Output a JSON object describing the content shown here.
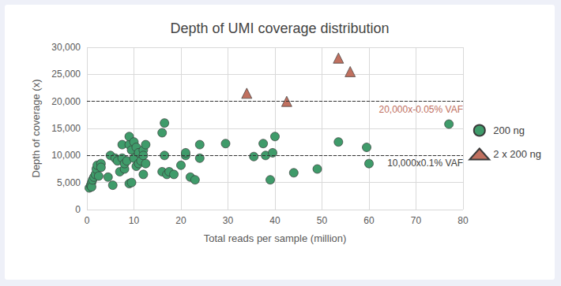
{
  "chart_data": {
    "type": "scatter",
    "title": "Depth of UMI coverage distribution",
    "x_label": "Total reads per sample (million)",
    "y_label": "Depth of coverage (x)",
    "xlim": [
      0,
      80
    ],
    "xticks": [
      0,
      10,
      20,
      30,
      40,
      50,
      60,
      70,
      80
    ],
    "ylim": [
      0,
      30000
    ],
    "yticks": [
      0,
      {
        "value": 5000,
        "label": "5,000"
      },
      {
        "value": 10000,
        "label": "10,000"
      },
      {
        "value": 15000,
        "label": "15,000"
      },
      {
        "value": 20000,
        "label": "20,000"
      },
      {
        "value": 25000,
        "label": "25,000"
      },
      {
        "value": 30000,
        "label": "30,000"
      }
    ],
    "grid": true,
    "legend": "right",
    "series": [
      {
        "name": "200 ng",
        "color": "#3f9b6a",
        "marker": "circle",
        "x": [
          0.5,
          0.8,
          1,
          1,
          1.2,
          1.5,
          1.8,
          2,
          2.2,
          2.5,
          3,
          3,
          4.5,
          5,
          5.5,
          6,
          6.5,
          7,
          7.5,
          7.5,
          8,
          8,
          8.5,
          9,
          9,
          9,
          9.5,
          9.5,
          10,
          10.5,
          10,
          10.5,
          11,
          11,
          11.5,
          12,
          12,
          12,
          12.5,
          12.5,
          16,
          16.5,
          16.5,
          16,
          17,
          17.5,
          18.5,
          20,
          21,
          21,
          22,
          23,
          24,
          24,
          29.5,
          35.5,
          37.5,
          38,
          39,
          39.5,
          40,
          44,
          49,
          53.5,
          59.5,
          60,
          77
        ],
        "values": [
          4000,
          4500,
          5000,
          4200,
          5500,
          6000,
          6500,
          7500,
          8200,
          6200,
          8500,
          7800,
          6000,
          10000,
          4500,
          9500,
          9000,
          7000,
          12000,
          9500,
          7500,
          8500,
          9000,
          4800,
          12000,
          13500,
          5000,
          11000,
          9500,
          8000,
          12500,
          11500,
          10500,
          8500,
          9000,
          11000,
          10000,
          6500,
          12000,
          8500,
          14200,
          16000,
          10000,
          7000,
          6500,
          7000,
          6500,
          8200,
          10000,
          10500,
          6000,
          5500,
          12000,
          9500,
          12200,
          9800,
          12200,
          10000,
          5500,
          10500,
          13500,
          6800,
          7500,
          12500,
          11500,
          8500,
          15800
        ]
      },
      {
        "name": "2 x 200 ng",
        "color": "#c0705f",
        "marker": "triangle",
        "x": [
          34,
          42.5,
          53.5,
          56
        ],
        "values": [
          21500,
          20000,
          28000,
          25500
        ]
      }
    ],
    "annotations": [
      {
        "y": 20000,
        "text": "20,000x-0.05% VAF",
        "color": "#c0705f",
        "line_style": "dashed"
      },
      {
        "y": 10000,
        "text": "10,000x0.1% VAF",
        "color": "#404040",
        "line_style": "dashed"
      }
    ]
  }
}
